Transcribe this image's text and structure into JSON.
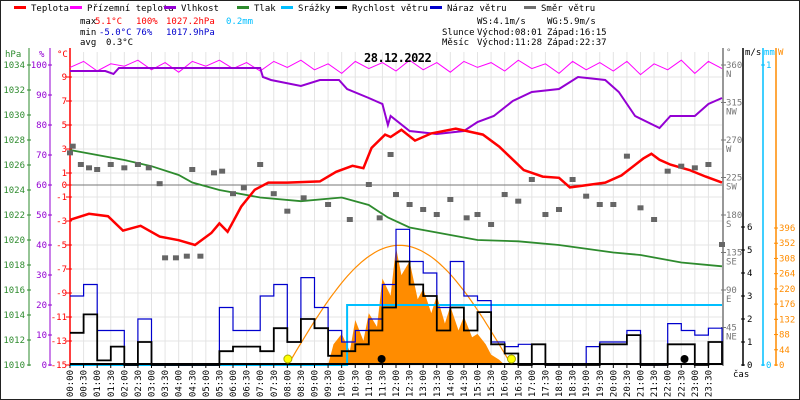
{
  "legend": [
    {
      "label": "Teplota",
      "color": "#ff0000"
    },
    {
      "label": "Přízemní teplota",
      "color": "#ff00ff"
    },
    {
      "label": "Vlhkost",
      "color": "#9400d3"
    },
    {
      "label": "Tlak",
      "color": "#2e8b2e"
    },
    {
      "label": "Srážky",
      "color": "#00bfff"
    },
    {
      "label": "Rychlost větru",
      "color": "#000000"
    },
    {
      "label": "Náraz větru",
      "color": "#0000cd"
    },
    {
      "label": "Směr větru",
      "color": "#707070"
    }
  ],
  "stats": {
    "max_label": "max",
    "max_temp": "5.1°C",
    "max_hum": "100%",
    "max_press": "1027.2hPa",
    "rain": "0.2mm",
    "min_label": "min",
    "min_temp": "-5.0°C",
    "min_hum": "76%",
    "min_press": "1017.9hPa",
    "avg_label": "avg",
    "avg_temp": "0.3°C",
    "ws": "WS:4.1m/s",
    "wg": "WG:5.9m/s",
    "sun_label": "Slunce",
    "sunrise": "Východ:08:01",
    "sunset": "Západ:16:15",
    "moon_label": "Měsíc",
    "moonrise": "Východ:11:28",
    "moonset": "Západ:22:37"
  },
  "chart_data": {
    "type": "line",
    "title": "28.12.2022",
    "xlabel": "čas",
    "x_ticks": [
      "00:00",
      "00:30",
      "01:00",
      "01:30",
      "02:00",
      "02:30",
      "03:00",
      "03:30",
      "04:00",
      "04:30",
      "05:00",
      "05:30",
      "06:00",
      "06:30",
      "07:00",
      "07:30",
      "08:00",
      "08:30",
      "09:00",
      "09:30",
      "10:00",
      "10:30",
      "11:00",
      "11:30",
      "12:00",
      "12:30",
      "13:00",
      "13:30",
      "14:00",
      "14:30",
      "15:00",
      "15:30",
      "16:00",
      "16:30",
      "17:00",
      "17:30",
      "18:00",
      "18:30",
      "19:00",
      "19:30",
      "20:00",
      "20:30",
      "21:00",
      "21:30",
      "22:00",
      "22:30",
      "23:00",
      "23:30"
    ],
    "axes": {
      "pressure": {
        "unit": "hPa",
        "range": [
          1010,
          1034
        ],
        "ticks": [
          1010,
          1012,
          1014,
          1016,
          1018,
          1020,
          1022,
          1024,
          1026,
          1028,
          1030,
          1032,
          1034
        ]
      },
      "humidity": {
        "unit": "%",
        "range": [
          0,
          100
        ],
        "ticks": [
          0,
          10,
          20,
          30,
          40,
          50,
          60,
          70,
          80,
          90,
          100
        ]
      },
      "temperature": {
        "unit": "°C",
        "range": [
          -15,
          10
        ],
        "ticks": [
          9,
          7,
          5,
          3,
          1,
          0,
          -1,
          -3,
          -5,
          -7,
          -9,
          -11,
          -13,
          -15
        ]
      },
      "direction": {
        "unit": "°",
        "range": [
          0,
          360
        ],
        "ticks": [
          {
            "v": 360,
            "c": "N"
          },
          {
            "v": 315,
            "c": "NW"
          },
          {
            "v": 270,
            "c": "W"
          },
          {
            "v": 225,
            "c": "SW"
          },
          {
            "v": 180,
            "c": "S"
          },
          {
            "v": 135,
            "c": "SE"
          },
          {
            "v": 90,
            "c": "E"
          },
          {
            "v": 45,
            "c": "NE"
          }
        ]
      },
      "wind": {
        "unit": "m/s",
        "range": [
          0,
          6
        ],
        "ticks": [
          0,
          1,
          2,
          3,
          4,
          5,
          6
        ]
      },
      "rain": {
        "unit": "mm",
        "range": [
          0,
          1
        ],
        "ticks": [
          0,
          1
        ]
      },
      "solar": {
        "unit": "W",
        "range": [
          0,
          396
        ],
        "ticks": [
          0,
          44,
          88,
          132,
          176,
          220,
          264,
          308,
          352,
          396
        ]
      }
    },
    "series": {
      "temperature": [
        [
          0,
          -2.9
        ],
        [
          0.7,
          -2.4
        ],
        [
          1.4,
          -2.6
        ],
        [
          1.95,
          -3.8
        ],
        [
          2.6,
          -3.4
        ],
        [
          3.3,
          -4.3
        ],
        [
          4,
          -4.6
        ],
        [
          4.6,
          -5.0
        ],
        [
          5.2,
          -4.0
        ],
        [
          5.5,
          -3.2
        ],
        [
          5.8,
          -3.9
        ],
        [
          6.3,
          -1.8
        ],
        [
          6.8,
          -0.4
        ],
        [
          7.3,
          0.2
        ],
        [
          8,
          0.2
        ],
        [
          9.2,
          0.3
        ],
        [
          9.8,
          1.1
        ],
        [
          10.4,
          1.6
        ],
        [
          10.8,
          1.4
        ],
        [
          11.1,
          3.1
        ],
        [
          11.6,
          4.2
        ],
        [
          11.8,
          4.0
        ],
        [
          12.2,
          4.6
        ],
        [
          12.7,
          3.7
        ],
        [
          13.3,
          4.3
        ],
        [
          14.2,
          4.7
        ],
        [
          15.2,
          4.2
        ],
        [
          15.8,
          3.2
        ],
        [
          16.7,
          1.25
        ],
        [
          17.4,
          0.7
        ],
        [
          18,
          0.6
        ],
        [
          18.4,
          -0.2
        ],
        [
          19.7,
          0.2
        ],
        [
          20.3,
          0.8
        ],
        [
          21.1,
          2.2
        ],
        [
          21.4,
          2.6
        ],
        [
          21.7,
          2.1
        ],
        [
          22.1,
          1.7
        ],
        [
          22.8,
          1.25
        ],
        [
          23.4,
          0.7
        ],
        [
          24,
          0.2
        ]
      ],
      "feels_like": [
        9.8,
        10.3,
        9.5,
        10.1,
        9.9,
        10.4,
        9.6,
        10.2,
        9.4,
        10.3,
        9.9,
        10.4,
        9.7,
        10.2,
        9.5,
        10.3,
        9.8,
        10.4,
        9.6,
        10.1,
        9.3,
        10.3,
        9.7,
        10.2,
        9.5,
        10.4,
        9.6,
        10.2,
        9.4,
        10.3,
        9.8,
        10.2,
        9.5,
        10.4,
        9.7,
        10.1,
        9.3,
        10.3,
        9.6,
        10.2,
        9.5,
        10.3,
        9.2,
        10.1,
        9.6,
        10.4,
        9.3,
        10.3,
        9.7
      ],
      "humidity": [
        [
          0,
          98
        ],
        [
          1.3,
          98
        ],
        [
          1.6,
          97
        ],
        [
          1.8,
          99
        ],
        [
          7,
          99
        ],
        [
          7.1,
          96
        ],
        [
          7.4,
          95
        ],
        [
          8.5,
          93
        ],
        [
          9.2,
          95
        ],
        [
          9.9,
          95
        ],
        [
          10.2,
          92
        ],
        [
          11,
          89
        ],
        [
          11.5,
          87
        ],
        [
          11.7,
          80
        ],
        [
          11.8,
          83
        ],
        [
          12.5,
          78
        ],
        [
          13.5,
          77
        ],
        [
          14.5,
          78
        ],
        [
          15,
          81
        ],
        [
          15.6,
          83
        ],
        [
          16.3,
          88
        ],
        [
          17,
          91
        ],
        [
          18,
          92
        ],
        [
          18.7,
          96
        ],
        [
          19.7,
          95
        ],
        [
          20.2,
          91
        ],
        [
          20.8,
          83
        ],
        [
          21.7,
          79
        ],
        [
          22.1,
          83
        ],
        [
          23,
          83
        ],
        [
          23.5,
          87
        ],
        [
          24,
          89
        ]
      ],
      "pressure": [
        [
          0,
          1027.2
        ],
        [
          1,
          1026.8
        ],
        [
          2,
          1026.4
        ],
        [
          3,
          1025.9
        ],
        [
          4,
          1025.2
        ],
        [
          4.5,
          1024.6
        ],
        [
          5.5,
          1024.0
        ],
        [
          7,
          1023.4
        ],
        [
          8.5,
          1023.1
        ],
        [
          10,
          1023.4
        ],
        [
          11,
          1022.8
        ],
        [
          11.7,
          1021.8
        ],
        [
          12.5,
          1021.0
        ],
        [
          13.5,
          1020.6
        ],
        [
          15,
          1020.0
        ],
        [
          16.5,
          1019.9
        ],
        [
          18,
          1019.6
        ],
        [
          20,
          1019.0
        ],
        [
          21,
          1018.8
        ],
        [
          22.5,
          1018.2
        ],
        [
          24,
          1017.9
        ]
      ],
      "rain": [
        [
          0,
          0
        ],
        [
          10.2,
          0
        ],
        [
          10.2,
          0.2
        ],
        [
          24,
          0.2
        ]
      ],
      "wind_speed": [
        1.4,
        2.2,
        0.2,
        0.8,
        0,
        1.0,
        0,
        0,
        0,
        0,
        0,
        0.6,
        0.8,
        0.8,
        0.6,
        1.6,
        1.0,
        2.0,
        1.6,
        0.4,
        0.6,
        0.9,
        1.5,
        2.5,
        4.5,
        3.5,
        3.0,
        1.5,
        2.5,
        1.5,
        2.3,
        0.9,
        0.5,
        0,
        0.9,
        0,
        0,
        0,
        0,
        0.9,
        0.9,
        1.3,
        0,
        0,
        0.9,
        0.9,
        0,
        1.0,
        0
      ],
      "wind_gust": [
        3.0,
        3.5,
        1.5,
        1.5,
        0,
        2.0,
        0,
        0,
        0,
        0,
        0,
        2.5,
        1.5,
        1.5,
        3.0,
        3.5,
        1.0,
        3.8,
        2.5,
        1.5,
        1.0,
        1.5,
        2.0,
        3.5,
        5.9,
        4.5,
        4.0,
        2.5,
        4.5,
        3.0,
        2.8,
        1.0,
        0.8,
        0.9,
        0.9,
        0,
        0,
        0,
        0.8,
        1.0,
        1.0,
        1.5,
        0,
        0,
        1.8,
        1.5,
        1.3,
        1.6,
        0
      ],
      "wind_direction": [
        [
          0,
          254
        ],
        [
          0.1,
          262
        ],
        [
          0.4,
          240
        ],
        [
          0.7,
          236
        ],
        [
          1,
          234
        ],
        [
          1.5,
          240
        ],
        [
          2,
          236
        ],
        [
          2.5,
          240
        ],
        [
          2.9,
          236
        ],
        [
          3.3,
          217
        ],
        [
          3.5,
          128
        ],
        [
          3.9,
          128
        ],
        [
          4.3,
          130
        ],
        [
          4.5,
          234
        ],
        [
          4.8,
          130
        ],
        [
          5.3,
          230
        ],
        [
          5.6,
          232
        ],
        [
          6,
          205
        ],
        [
          6.4,
          212
        ],
        [
          7,
          240
        ],
        [
          7.5,
          205
        ],
        [
          8,
          184
        ],
        [
          8.6,
          200
        ],
        [
          9.5,
          192
        ],
        [
          10.3,
          174
        ],
        [
          11,
          216
        ],
        [
          11.4,
          176
        ],
        [
          11.8,
          252
        ],
        [
          12,
          204
        ],
        [
          12.5,
          192
        ],
        [
          13,
          186
        ],
        [
          13.5,
          180
        ],
        [
          14,
          198
        ],
        [
          14.6,
          176
        ],
        [
          15,
          180
        ],
        [
          15.5,
          168
        ],
        [
          16,
          204
        ],
        [
          16.5,
          196
        ],
        [
          17,
          222
        ],
        [
          17.5,
          180
        ],
        [
          18,
          186
        ],
        [
          18.5,
          222
        ],
        [
          19,
          202
        ],
        [
          19.5,
          192
        ],
        [
          20,
          192
        ],
        [
          20.5,
          250
        ],
        [
          21,
          188
        ],
        [
          21.5,
          174
        ],
        [
          22,
          232
        ],
        [
          22.5,
          238
        ],
        [
          23,
          236
        ],
        [
          23.5,
          240
        ],
        [
          24,
          144
        ]
      ],
      "solar": [
        [
          9.5,
          0
        ],
        [
          9.7,
          60
        ],
        [
          10,
          90
        ],
        [
          10.3,
          40
        ],
        [
          10.5,
          130
        ],
        [
          10.8,
          70
        ],
        [
          11,
          150
        ],
        [
          11.3,
          110
        ],
        [
          11.5,
          250
        ],
        [
          11.8,
          200
        ],
        [
          12,
          340
        ],
        [
          12.2,
          260
        ],
        [
          12.5,
          300
        ],
        [
          12.8,
          190
        ],
        [
          13,
          220
        ],
        [
          13.3,
          150
        ],
        [
          13.5,
          200
        ],
        [
          13.8,
          120
        ],
        [
          14,
          170
        ],
        [
          14.3,
          100
        ],
        [
          14.5,
          140
        ],
        [
          14.8,
          80
        ],
        [
          15,
          90
        ],
        [
          15.3,
          60
        ],
        [
          15.5,
          30
        ],
        [
          15.8,
          15
        ],
        [
          16,
          0
        ]
      ],
      "solar_theoretical_peak": 346,
      "sun_events": [
        8.02,
        16.25
      ],
      "moon_events": [
        11.47,
        22.62
      ]
    }
  }
}
